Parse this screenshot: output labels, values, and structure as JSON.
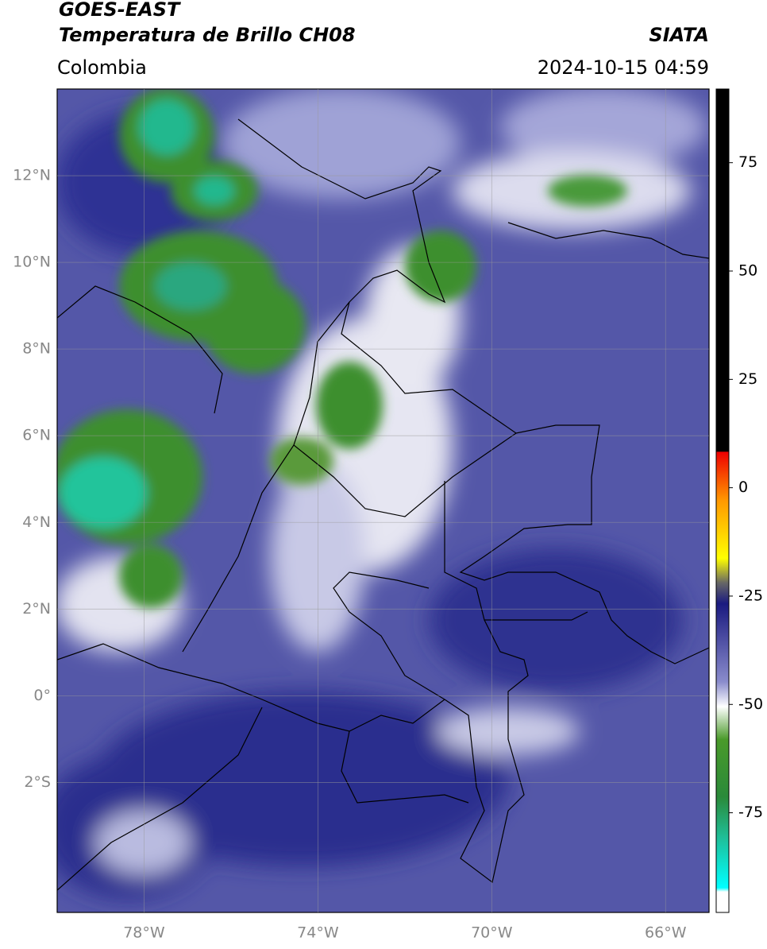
{
  "header": {
    "title": "GOES-EAST",
    "subtitle": "Temperatura de Brillo CH08",
    "agency": "SIATA",
    "region": "Colombia",
    "datetime": "2024-10-15 04:59"
  },
  "map": {
    "xlim": [
      -80,
      -65
    ],
    "ylim": [
      -5,
      14
    ],
    "xticks": [
      {
        "value": -78,
        "label": "78°W"
      },
      {
        "value": -74,
        "label": "74°W"
      },
      {
        "value": -70,
        "label": "70°W"
      },
      {
        "value": -66,
        "label": "66°W"
      }
    ],
    "yticks": [
      {
        "value": -2,
        "label": "2°S"
      },
      {
        "value": 0,
        "label": "0°"
      },
      {
        "value": 2,
        "label": "2°N"
      },
      {
        "value": 4,
        "label": "4°N"
      },
      {
        "value": 6,
        "label": "6°N"
      },
      {
        "value": 8,
        "label": "8°N"
      },
      {
        "value": 10,
        "label": "10°N"
      },
      {
        "value": 12,
        "label": "12°N"
      }
    ],
    "grid": true
  },
  "colorbar": {
    "lim": [
      -98,
      92
    ],
    "ticks": [
      75,
      50,
      25,
      0,
      -25,
      -50,
      -75
    ]
  }
}
